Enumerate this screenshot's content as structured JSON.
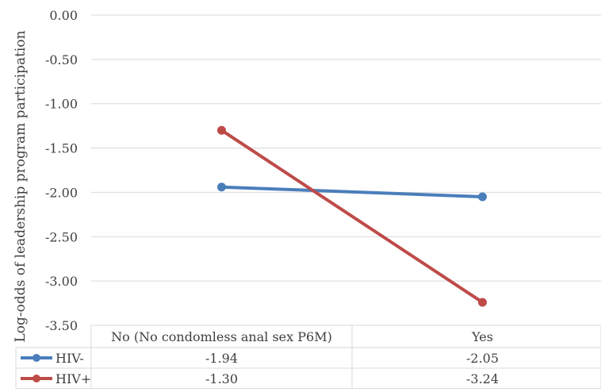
{
  "chart_data": {
    "type": "line",
    "ylabel": "Log-odds of leadership program participation",
    "categories": [
      "No (No condomless anal sex P6M)",
      "Yes"
    ],
    "ylim": [
      -3.5,
      0.0
    ],
    "y_ticks": [
      "0.00",
      "-0.50",
      "-1.00",
      "-1.50",
      "-2.00",
      "-2.50",
      "-3.00",
      "-3.50"
    ],
    "y_tick_values": [
      0.0,
      -0.5,
      -1.0,
      -1.5,
      -2.0,
      -2.5,
      -3.0,
      -3.5
    ],
    "grid": true,
    "legend": "data-table-bottom",
    "series": [
      {
        "name": "HIV-",
        "color": "#4A7EBB",
        "values": [
          -1.94,
          -2.05
        ],
        "labels": [
          "-1.94",
          "-2.05"
        ]
      },
      {
        "name": "HIV+",
        "color": "#BE4B48",
        "values": [
          -1.3,
          -3.24
        ],
        "labels": [
          "-1.30",
          "-3.24"
        ]
      }
    ]
  }
}
